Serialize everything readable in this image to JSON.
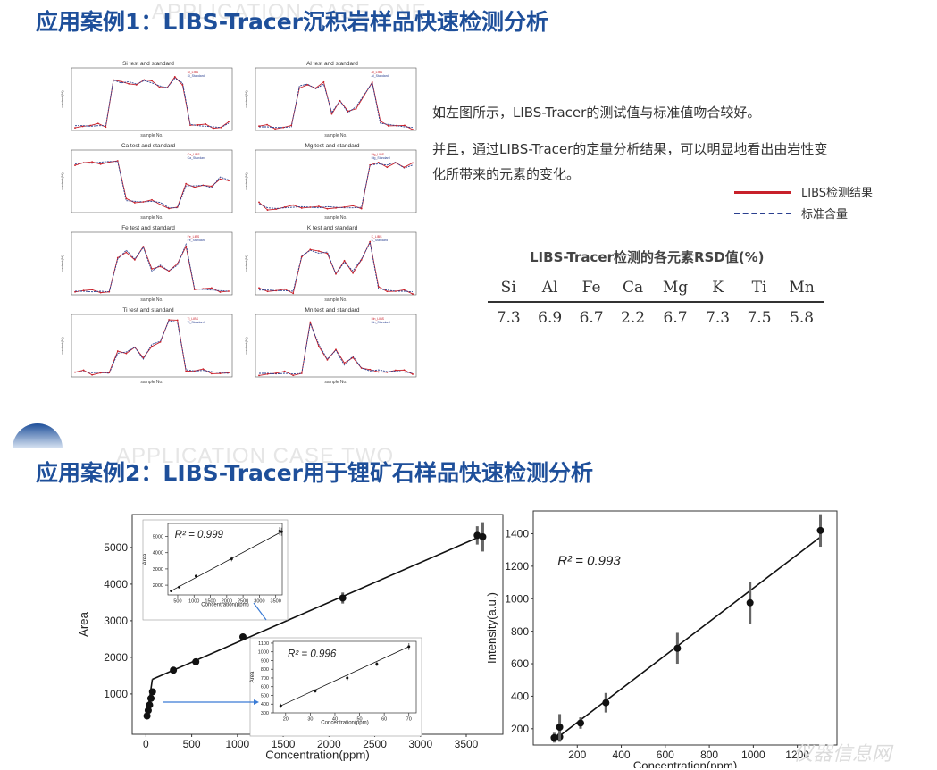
{
  "watermark_top": "APPLICATION CASE ONE",
  "watermark_mid": "APPLICATION CASE TWO",
  "case1": {
    "title": "应用案例1：LIBS-Tracer沉积岩样品快速检测分析",
    "panels": [
      {
        "title": "Si test and standard",
        "xlabel": "sample No.",
        "ylabel": "content(%)",
        "legend": [
          "Si_LIBS",
          "Si_Standard"
        ]
      },
      {
        "title": "Al test and standard",
        "xlabel": "sample No.",
        "ylabel": "content(%)",
        "legend": [
          "Al_LIBS",
          "Al_Standard"
        ]
      },
      {
        "title": "Ca test and standard",
        "xlabel": "sample No.",
        "ylabel": "content(%)",
        "legend": [
          "Ca_LIBS",
          "Ca_Standard"
        ]
      },
      {
        "title": "Mg test and standard",
        "xlabel": "sample No.",
        "ylabel": "content(%)",
        "legend": [
          "Mg_LIBS",
          "Mg_Standard"
        ]
      },
      {
        "title": "Fe test and standard",
        "xlabel": "sample No.",
        "ylabel": "content(%)",
        "legend": [
          "Fe_LIBS",
          "Fe_Standard"
        ]
      },
      {
        "title": "K test and standard",
        "xlabel": "sample No.",
        "ylabel": "content(%)",
        "legend": [
          "K_LIBS",
          "K_Standard"
        ]
      },
      {
        "title": "Ti test and standard",
        "xlabel": "sample No.",
        "ylabel": "content(%)",
        "legend": [
          "Ti_LIBS",
          "Ti_Standard"
        ]
      },
      {
        "title": "Mn test and standard",
        "xlabel": "sample No.",
        "ylabel": "content(%)",
        "legend": [
          "Mn_LIBS",
          "Mn_Standard"
        ]
      }
    ],
    "paragraph1": "如左图所示，LIBS-Tracer的测试值与标准值吻合较好。",
    "paragraph2_line1": "并且，通过LIBS-Tracer的定量分析结果，可以明显地看出由岩性变",
    "paragraph2_line2": "化所带来的元素的变化。",
    "legend_solid": "LIBS检测结果",
    "legend_dashed": "标准含量",
    "legend_colors": {
      "solid": "#c8202a",
      "dashed": "#2a3f8f"
    },
    "rsd_title": "LIBS-Tracer检测的各元素RSD值(%)",
    "rsd_elements": [
      "Si",
      "Al",
      "Fe",
      "Ca",
      "Mg",
      "K",
      "Ti",
      "Mn"
    ],
    "rsd_values": [
      "7.3",
      "6.9",
      "6.7",
      "2.2",
      "6.7",
      "7.3",
      "7.5",
      "5.8"
    ]
  },
  "case2": {
    "title": "应用案例2：LIBS-Tracer用于锂矿石样品快速检测分析"
  },
  "chart_data": [
    {
      "type": "scatter",
      "xlabel": "Concentration(ppm)",
      "ylabel": "Area",
      "xlim": [
        -150,
        3900
      ],
      "ylim": [
        -100,
        5900
      ],
      "xticks": [
        0,
        500,
        1000,
        1500,
        2000,
        2500,
        3000,
        3500
      ],
      "yticks": [
        1000,
        2000,
        3000,
        4000,
        5000
      ],
      "points": [
        [
          12,
          400
        ],
        [
          25,
          550
        ],
        [
          40,
          700
        ],
        [
          55,
          880
        ],
        [
          72,
          1060
        ],
        [
          300,
          1650
        ],
        [
          545,
          1880
        ],
        [
          1060,
          2560
        ],
        [
          2150,
          3620
        ],
        [
          3620,
          5330
        ],
        [
          3680,
          5290
        ]
      ],
      "errors": [
        0,
        0,
        0,
        0,
        0,
        0,
        0,
        0,
        150,
        250,
        400
      ],
      "fit": [
        [
          70,
          1400
        ],
        [
          3680,
          5330
        ]
      ],
      "fit_low": [
        [
          12,
          400
        ],
        [
          70,
          1400
        ]
      ]
    },
    {
      "type": "scatter",
      "subtitle": "R² = 0.999",
      "xlabel": "Concentration(ppm)",
      "ylabel": "Area",
      "xlim": [
        200,
        3700
      ],
      "ylim": [
        1400,
        5800
      ],
      "xticks": [
        500,
        1000,
        1500,
        2000,
        2500,
        3000,
        3500
      ],
      "yticks": [
        2000,
        3000,
        4000,
        5000
      ],
      "points": [
        [
          300,
          1650
        ],
        [
          545,
          1880
        ],
        [
          1060,
          2560
        ],
        [
          2150,
          3620
        ],
        [
          3620,
          5330
        ],
        [
          3680,
          5290
        ]
      ],
      "errors": [
        0,
        0,
        0,
        150,
        250,
        250
      ]
    },
    {
      "type": "scatter",
      "subtitle": "R² = 0.996",
      "xlabel": "Concentration(ppm)",
      "ylabel": "Area",
      "xlim": [
        15,
        73
      ],
      "ylim": [
        300,
        1120
      ],
      "xticks": [
        20,
        30,
        40,
        50,
        60,
        70
      ],
      "yticks": [
        300,
        400,
        500,
        600,
        700,
        800,
        900,
        1000,
        1100
      ],
      "points": [
        [
          18,
          380
        ],
        [
          32,
          550
        ],
        [
          45,
          700
        ],
        [
          57,
          860
        ],
        [
          70,
          1060
        ]
      ],
      "errors": [
        25,
        20,
        30,
        25,
        40
      ]
    },
    {
      "type": "scatter",
      "subtitle": "R² = 0.993",
      "xlabel": "Concentration(ppm)",
      "ylabel": "Intensity(a.u.)",
      "xlim": [
        0,
        1380
      ],
      "ylim": [
        100,
        1540
      ],
      "xticks": [
        200,
        400,
        600,
        800,
        1000,
        1200
      ],
      "yticks": [
        200,
        400,
        600,
        800,
        1000,
        1200,
        1400
      ],
      "points": [
        [
          95,
          145
        ],
        [
          120,
          150
        ],
        [
          120,
          210
        ],
        [
          215,
          235
        ],
        [
          330,
          360
        ],
        [
          655,
          695
        ],
        [
          985,
          975
        ],
        [
          1305,
          1420
        ]
      ],
      "errors": [
        30,
        30,
        80,
        35,
        60,
        95,
        130,
        100
      ],
      "fit": [
        [
          95,
          130
        ],
        [
          1305,
          1380
        ]
      ]
    }
  ],
  "site_watermark": "仪器信息网"
}
